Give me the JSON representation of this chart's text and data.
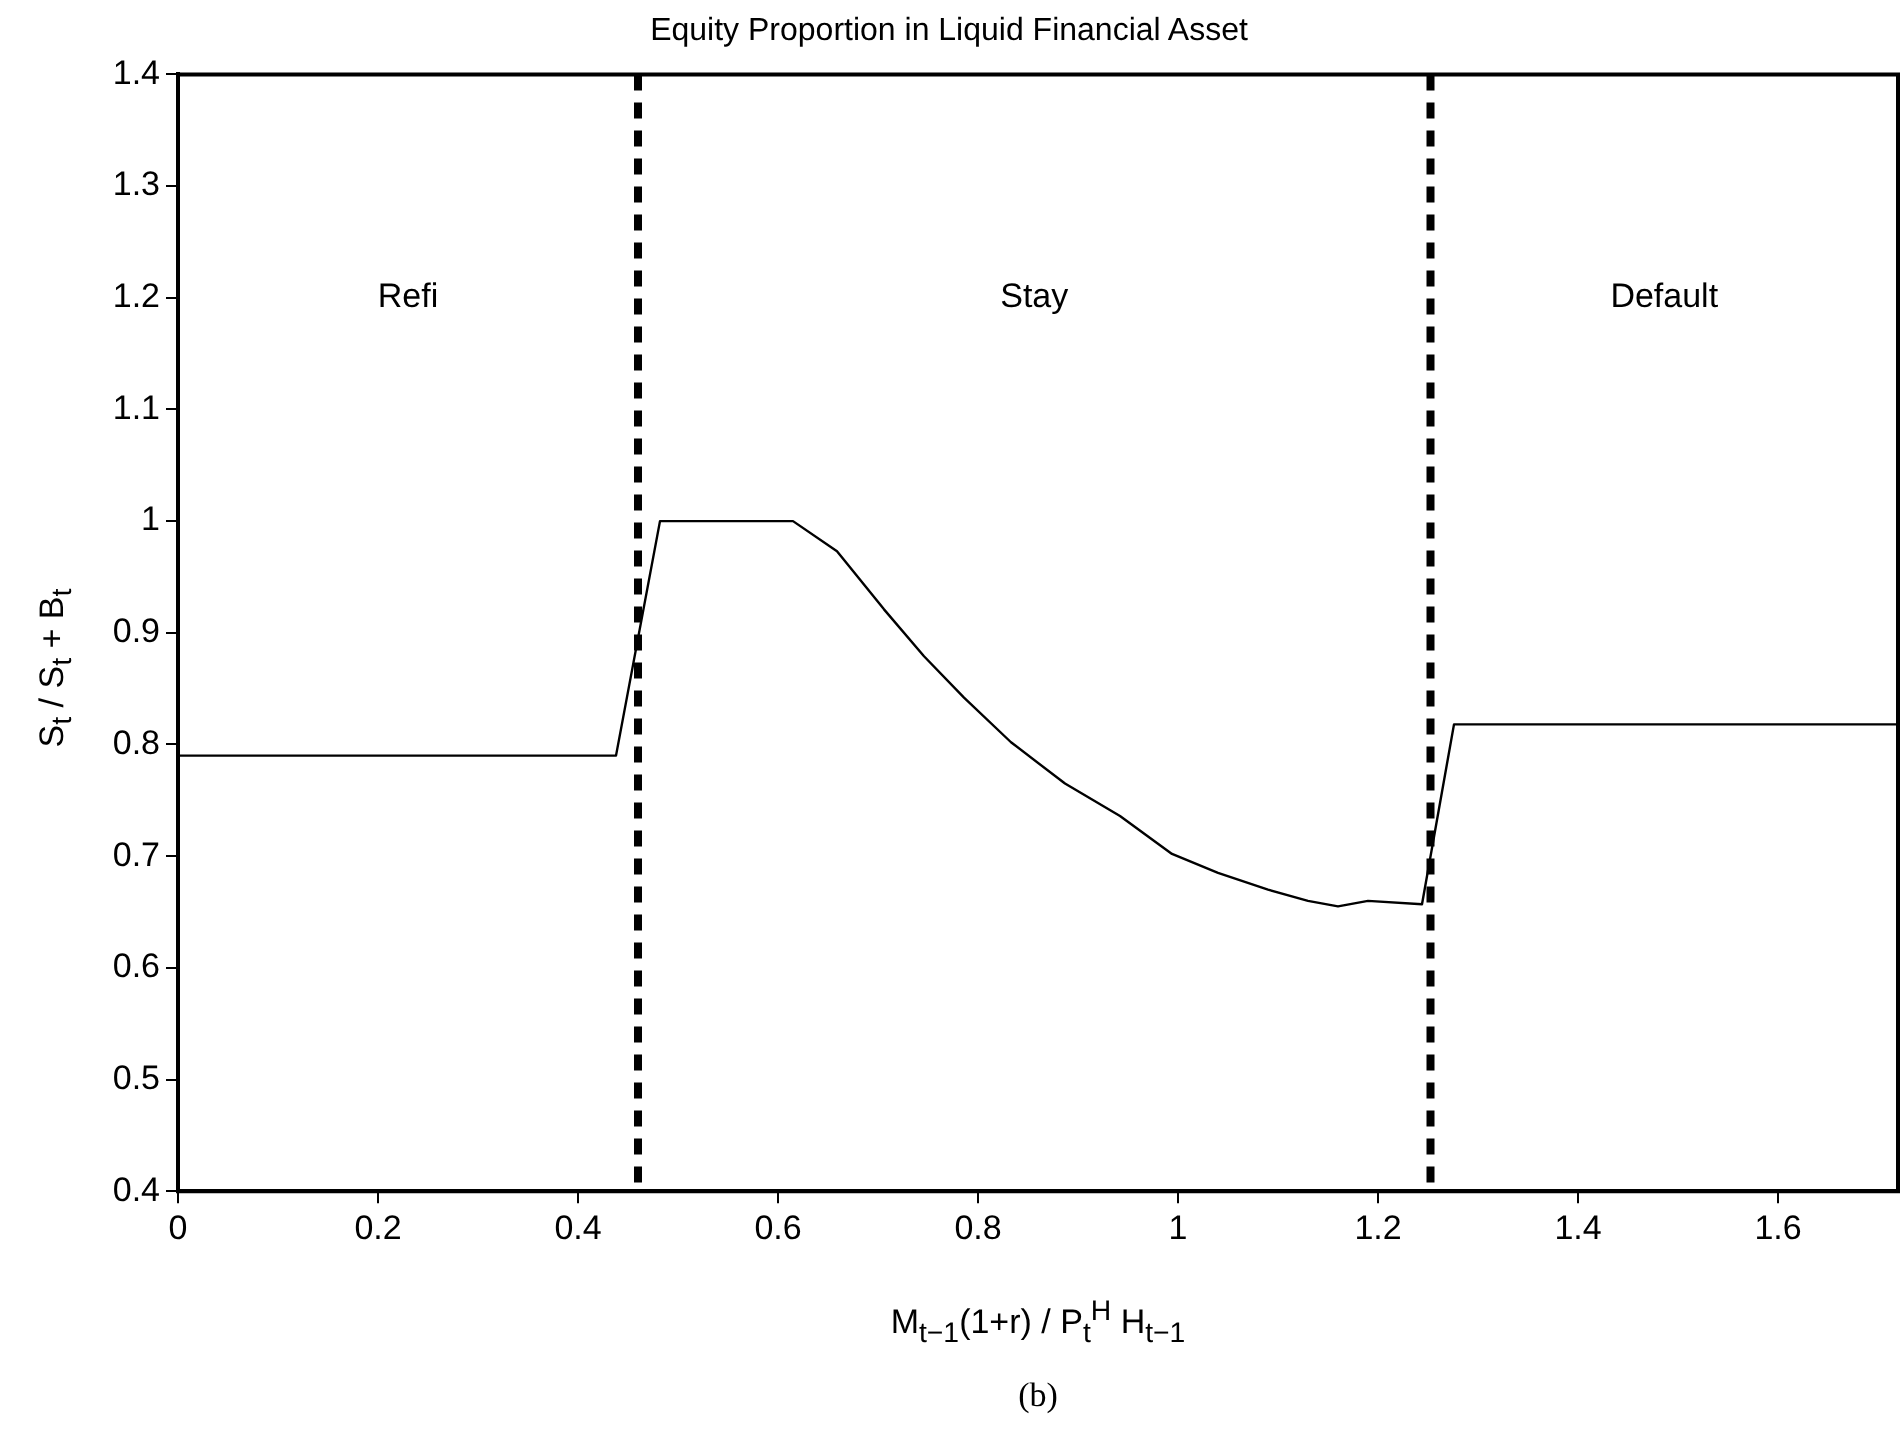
{
  "chart_data": {
    "type": "line",
    "title": "Equity Proportion in Liquid Financial Asset",
    "xlabel": "M$_{t−1}$(1+r) / P$_{t}$$^{H}$ H$_{t−1}$",
    "ylabel": "S$_{t}$ / S$_{t}$ + B$_{t}$",
    "x": [
      0,
      0.438,
      0.482,
      0.615,
      0.659,
      0.706,
      0.746,
      0.786,
      0.833,
      0.887,
      0.942,
      0.994,
      1.04,
      1.09,
      1.13,
      1.16,
      1.19,
      1.244,
      1.276,
      1.718
    ],
    "series": [
      {
        "color": "#000000",
        "values": [
          0.79,
          0.79,
          1.0,
          1.0,
          0.973,
          0.921,
          0.879,
          0.842,
          0.802,
          0.765,
          0.736,
          0.702,
          0.685,
          0.67,
          0.66,
          0.655,
          0.66,
          0.657,
          0.818,
          0.818
        ]
      }
    ],
    "xlim": [
      0,
      1.72
    ],
    "xticks": [
      0,
      0.2,
      0.4,
      0.6,
      0.8,
      1,
      1.2,
      1.4,
      1.6
    ],
    "ylim": [
      0.4,
      1.4
    ],
    "yticks": [
      0.4,
      0.5,
      0.6,
      0.7,
      0.8,
      0.9,
      1,
      1.1,
      1.2,
      1.3,
      1.4
    ],
    "ref_lines": [
      {
        "axis": "x",
        "value": 0.46,
        "color": "#000000",
        "line_style": "dashed"
      },
      {
        "axis": "x",
        "value": 1.2525,
        "color": "#000000",
        "line_style": "dashed"
      }
    ],
    "annotations": [
      "Refi",
      "Stay",
      "Default",
      "(b)"
    ],
    "grid": false,
    "legend": false,
    "marker": "none",
    "line_style": "solid"
  }
}
